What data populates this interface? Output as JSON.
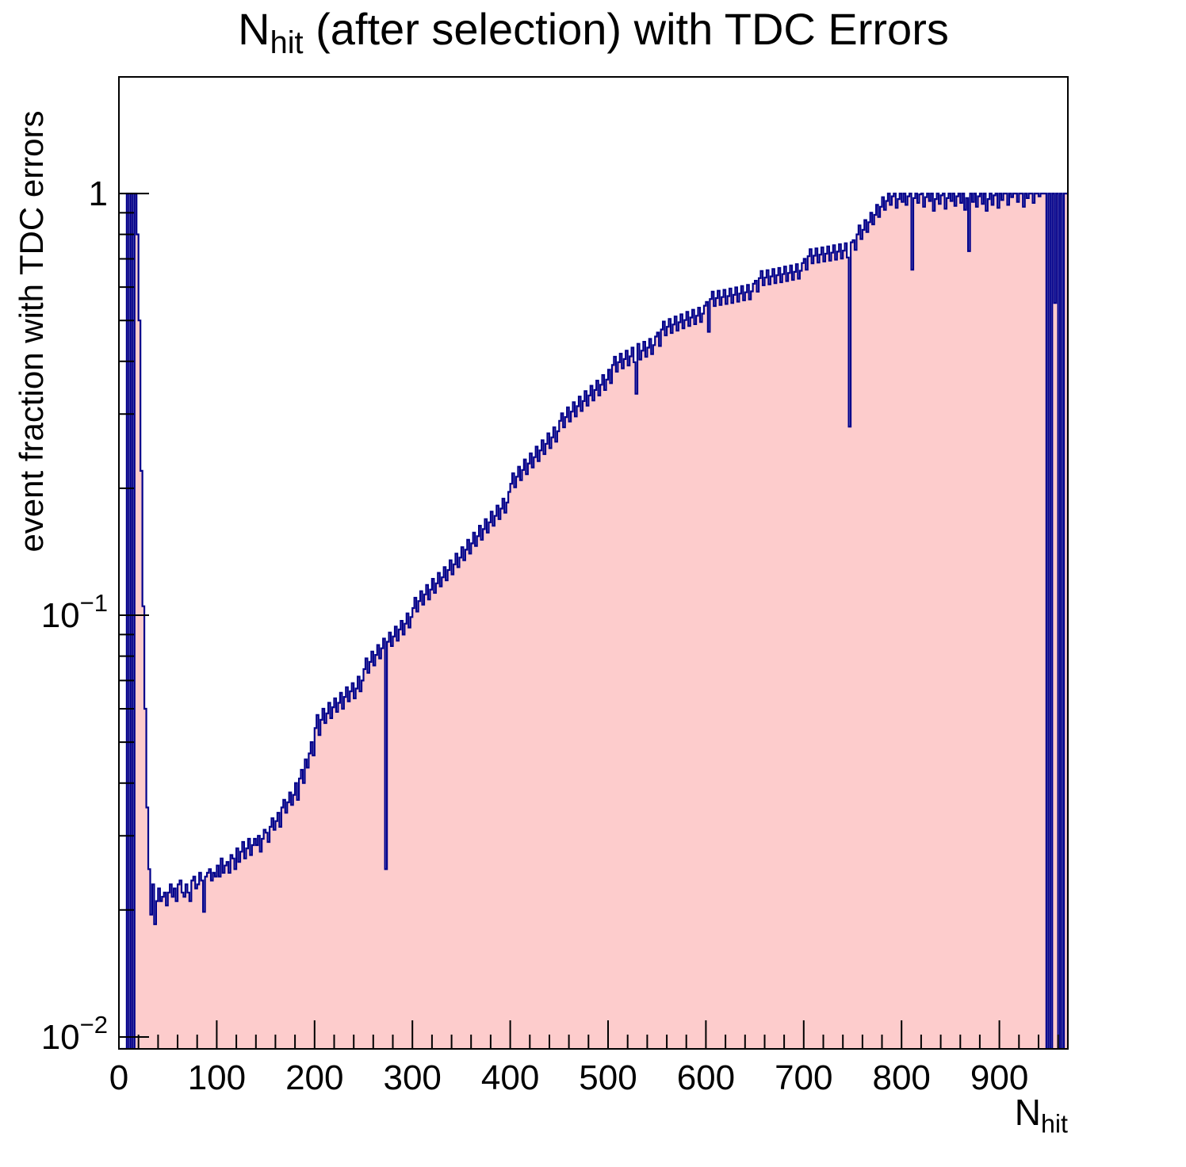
{
  "page": {
    "background": "#ffffff"
  },
  "title": {
    "prefix": "N",
    "sub": "hit",
    "rest": " (after selection) with TDC Errors"
  },
  "axes": {
    "y": {
      "title": "event fraction with TDC errors"
    },
    "x": {
      "title_main": "N",
      "title_sub": "hit"
    }
  },
  "chart_data": {
    "type": "bar",
    "subtype": "histogram-step-filled",
    "title": "N_hit (after selection) with TDC Errors",
    "xlabel": "N_hit",
    "ylabel": "event fraction with TDC errors",
    "y_scale": "log",
    "x_range": [
      0,
      970
    ],
    "y_range": [
      0.00937,
      1.89
    ],
    "bin_width": 2,
    "x_start": 0,
    "grid": false,
    "legend": "none",
    "colors": {
      "fill": "#fdcccc",
      "line": "#00008b",
      "axis": "#000000"
    },
    "x_major_ticks": {
      "values": [
        0,
        100,
        200,
        300,
        400,
        500,
        600,
        700,
        800,
        900
      ],
      "labels": [
        "0",
        "100",
        "200",
        "300",
        "400",
        "500",
        "600",
        "700",
        "800",
        "900"
      ]
    },
    "x_minor_step": 20,
    "y_major_ticks": [
      {
        "value": 1,
        "base": "1",
        "exp": ""
      },
      {
        "value": 0.1,
        "base": "10",
        "exp": "−1"
      },
      {
        "value": 0.01,
        "base": "10",
        "exp": "−2"
      }
    ],
    "y_minor_ticks": [
      0.02,
      0.03,
      0.04,
      0.05,
      0.06,
      0.07,
      0.08,
      0.09,
      0.2,
      0.3,
      0.4,
      0.5,
      0.6,
      0.7,
      0.8,
      0.9
    ],
    "bins": [
      0,
      0,
      0,
      0,
      1,
      0,
      1,
      0,
      1,
      0.8,
      0.5,
      0.22,
      0.105,
      0.06,
      0.035,
      0.025,
      0.0195,
      0.023,
      0.0185,
      0.021,
      0.0225,
      0.021,
      0.0215,
      0.022,
      0.0205,
      0.022,
      0.023,
      0.0215,
      0.0225,
      0.021,
      0.023,
      0.0235,
      0.022,
      0.0215,
      0.023,
      0.022,
      0.021,
      0.0235,
      0.024,
      0.0225,
      0.023,
      0.0245,
      0.0235,
      0.0198,
      0.024,
      0.0245,
      0.025,
      0.0235,
      0.0245,
      0.024,
      0.0255,
      0.024,
      0.0265,
      0.0245,
      0.0255,
      0.026,
      0.0245,
      0.027,
      0.0265,
      0.025,
      0.028,
      0.026,
      0.0275,
      0.029,
      0.0265,
      0.028,
      0.0295,
      0.027,
      0.0285,
      0.0295,
      0.0285,
      0.03,
      0.0275,
      0.0295,
      0.031,
      0.0305,
      0.029,
      0.0315,
      0.033,
      0.031,
      0.0325,
      0.034,
      0.0315,
      0.035,
      0.0365,
      0.034,
      0.036,
      0.038,
      0.0355,
      0.0375,
      0.04,
      0.0365,
      0.041,
      0.043,
      0.04,
      0.0455,
      0.0435,
      0.047,
      0.05,
      0.0465,
      0.054,
      0.058,
      0.052,
      0.0565,
      0.06,
      0.0555,
      0.0585,
      0.062,
      0.057,
      0.0605,
      0.0635,
      0.059,
      0.062,
      0.0655,
      0.06,
      0.064,
      0.0675,
      0.0625,
      0.066,
      0.069,
      0.0635,
      0.067,
      0.0715,
      0.066,
      0.07,
      0.0745,
      0.079,
      0.073,
      0.0775,
      0.082,
      0.076,
      0.0805,
      0.085,
      0.079,
      0.0835,
      0.088,
      0.025,
      0.0865,
      0.091,
      0.0845,
      0.089,
      0.094,
      0.087,
      0.0925,
      0.097,
      0.09,
      0.0955,
      0.101,
      0.0935,
      0.099,
      0.104,
      0.11,
      0.102,
      0.108,
      0.114,
      0.106,
      0.112,
      0.118,
      0.109,
      0.115,
      0.122,
      0.113,
      0.119,
      0.126,
      0.117,
      0.123,
      0.13,
      0.121,
      0.128,
      0.135,
      0.125,
      0.132,
      0.14,
      0.13,
      0.137,
      0.145,
      0.135,
      0.143,
      0.151,
      0.14,
      0.148,
      0.157,
      0.146,
      0.154,
      0.163,
      0.151,
      0.16,
      0.169,
      0.157,
      0.166,
      0.176,
      0.163,
      0.172,
      0.182,
      0.169,
      0.179,
      0.189,
      0.175,
      0.185,
      0.196,
      0.205,
      0.217,
      0.201,
      0.213,
      0.225,
      0.209,
      0.221,
      0.234,
      0.216,
      0.229,
      0.242,
      0.224,
      0.237,
      0.251,
      0.232,
      0.246,
      0.26,
      0.241,
      0.255,
      0.27,
      0.249,
      0.264,
      0.279,
      0.258,
      0.273,
      0.289,
      0.301,
      0.279,
      0.295,
      0.311,
      0.288,
      0.304,
      0.32,
      0.296,
      0.313,
      0.33,
      0.305,
      0.322,
      0.34,
      0.314,
      0.332,
      0.35,
      0.323,
      0.342,
      0.36,
      0.332,
      0.352,
      0.371,
      0.342,
      0.362,
      0.382,
      0.355,
      0.392,
      0.41,
      0.378,
      0.398,
      0.417,
      0.385,
      0.405,
      0.424,
      0.391,
      0.411,
      0.431,
      0.398,
      0.335,
      0.44,
      0.404,
      0.424,
      0.445,
      0.41,
      0.431,
      0.452,
      0.416,
      0.437,
      0.458,
      0.468,
      0.435,
      0.476,
      0.497,
      0.461,
      0.483,
      0.504,
      0.467,
      0.489,
      0.511,
      0.473,
      0.495,
      0.517,
      0.479,
      0.501,
      0.524,
      0.485,
      0.508,
      0.53,
      0.49,
      0.513,
      0.536,
      0.496,
      0.519,
      0.542,
      0.553,
      0.47,
      0.562,
      0.585,
      0.541,
      0.565,
      0.588,
      0.544,
      0.568,
      0.591,
      0.547,
      0.571,
      0.595,
      0.55,
      0.575,
      0.599,
      0.554,
      0.579,
      0.603,
      0.558,
      0.583,
      0.607,
      0.561,
      0.586,
      0.611,
      0.621,
      0.585,
      0.63,
      0.655,
      0.606,
      0.632,
      0.658,
      0.609,
      0.636,
      0.662,
      0.613,
      0.64,
      0.666,
      0.616,
      0.644,
      0.671,
      0.62,
      0.648,
      0.675,
      0.624,
      0.652,
      0.68,
      0.628,
      0.656,
      0.684,
      0.7,
      0.66,
      0.71,
      0.738,
      0.683,
      0.712,
      0.741,
      0.686,
      0.716,
      0.745,
      0.69,
      0.72,
      0.749,
      0.693,
      0.724,
      0.754,
      0.697,
      0.728,
      0.758,
      0.701,
      0.732,
      0.762,
      0.705,
      0.28,
      0.766,
      0.775,
      0.735,
      0.8,
      0.84,
      0.78,
      0.82,
      0.865,
      0.81,
      0.855,
      0.9,
      0.845,
      0.89,
      0.94,
      0.88,
      0.93,
      0.98,
      0.915,
      0.96,
      1,
      0.94,
      0.985,
      1,
      0.925,
      0.97,
      1,
      0.955,
      1,
      0.94,
      0.985,
      1,
      0.66,
      0.975,
      1,
      0.95,
      0.995,
      1,
      0.93,
      0.98,
      1,
      0.96,
      1,
      0.91,
      0.97,
      1,
      0.945,
      0.99,
      1,
      0.92,
      0.975,
      1,
      0.96,
      1,
      0.935,
      0.985,
      1,
      0.95,
      1,
      0.915,
      0.975,
      0.73,
      1,
      0.955,
      1,
      0.93,
      0.985,
      1,
      0.945,
      1,
      0.91,
      0.97,
      1,
      0.94,
      0.99,
      1,
      0.925,
      1,
      0.965,
      1,
      1,
      0.94,
      1,
      0.98,
      1,
      1,
      0.955,
      1,
      1,
      0.93,
      1,
      0.975,
      1,
      1,
      0.95,
      1,
      1,
      0.985,
      1,
      1,
      1,
      0,
      1,
      0,
      1,
      0.55,
      1,
      0,
      1,
      0,
      1,
      1
    ]
  }
}
